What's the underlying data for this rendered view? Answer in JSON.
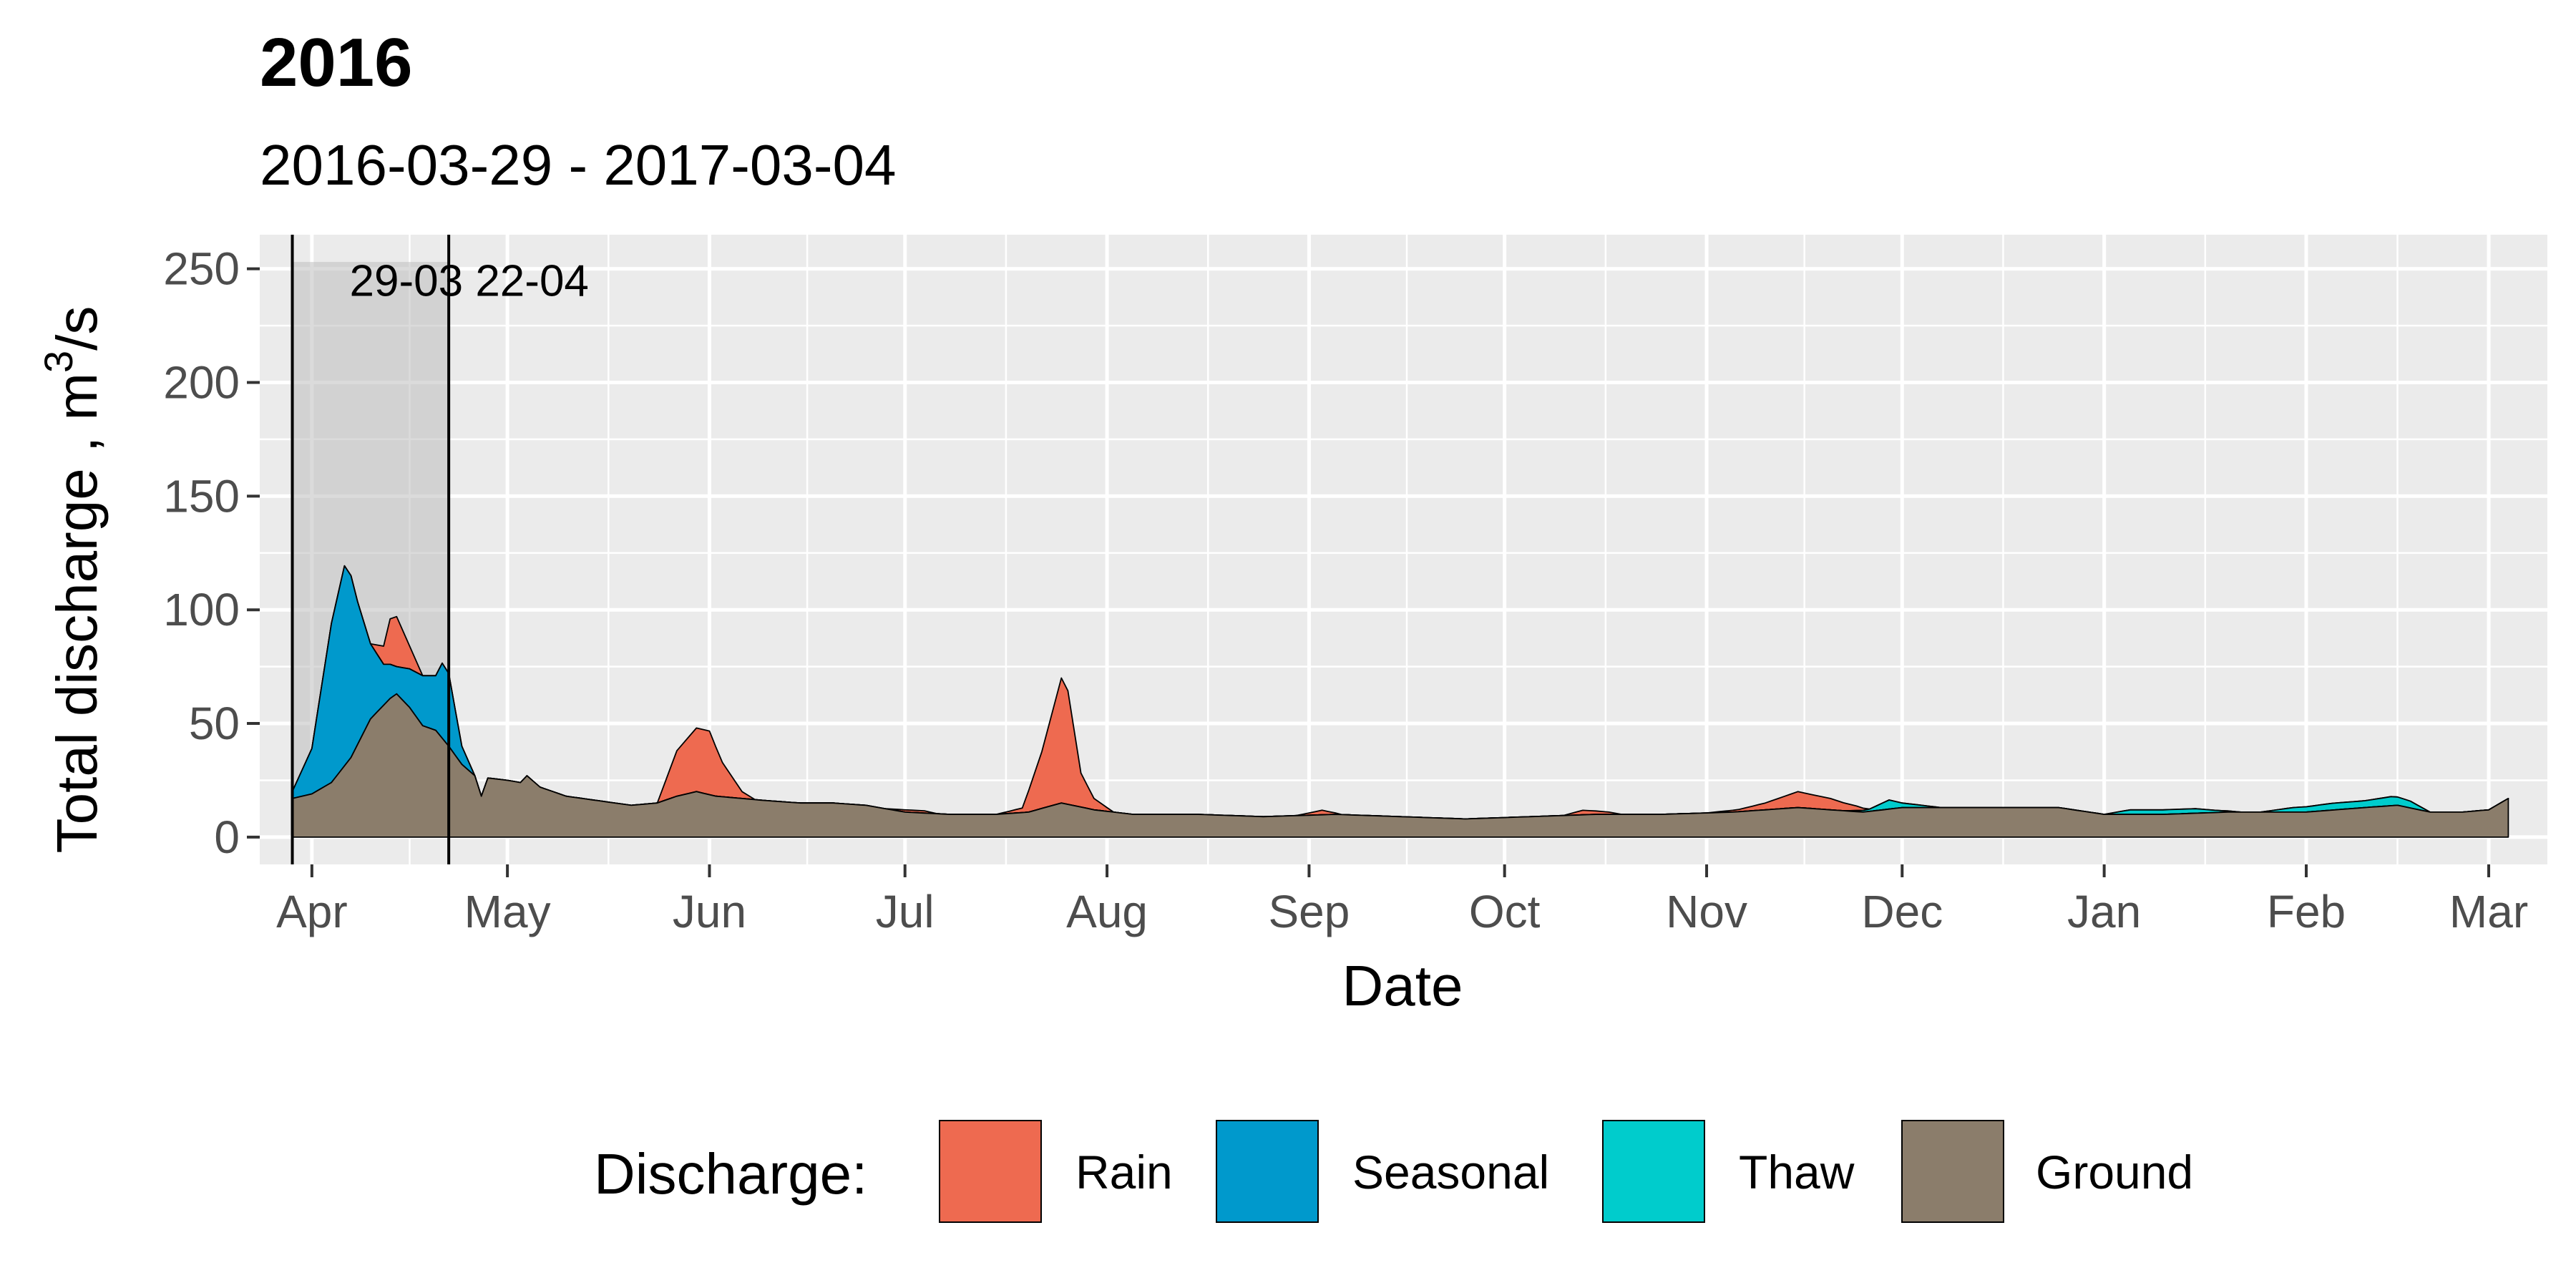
{
  "chart_data": {
    "type": "area",
    "stacked": true,
    "title": "2016",
    "subtitle": "2016-03-29 - 2017-03-04",
    "xlabel": "Date",
    "ylabel_main": "Total discharge ,  m",
    "ylabel_sup": "3",
    "ylabel_tail": "/s",
    "xlim": [
      "2016-03-24",
      "2017-03-10"
    ],
    "ylim": [
      -12,
      265
    ],
    "x_ticks": [
      {
        "date": "2016-04-01",
        "label": "Apr"
      },
      {
        "date": "2016-05-01",
        "label": "May"
      },
      {
        "date": "2016-06-01",
        "label": "Jun"
      },
      {
        "date": "2016-07-01",
        "label": "Jul"
      },
      {
        "date": "2016-08-01",
        "label": "Aug"
      },
      {
        "date": "2016-09-01",
        "label": "Sep"
      },
      {
        "date": "2016-10-01",
        "label": "Oct"
      },
      {
        "date": "2016-11-01",
        "label": "Nov"
      },
      {
        "date": "2016-12-01",
        "label": "Dec"
      },
      {
        "date": "2017-01-01",
        "label": "Jan"
      },
      {
        "date": "2017-02-01",
        "label": "Feb"
      },
      {
        "date": "2017-03-01",
        "label": "Mar"
      }
    ],
    "y_ticks": [
      0,
      50,
      100,
      150,
      200,
      250
    ],
    "grid": true,
    "highlight": {
      "start": "2016-03-29",
      "end": "2016-04-22",
      "ymax": 253,
      "label": "29-03 22-04"
    },
    "legend_title": "Discharge:",
    "legend_position": "bottom",
    "series": [
      {
        "name": "Ground",
        "color": "#8b7d6b",
        "points": [
          [
            "2016-03-29",
            17
          ],
          [
            "2016-04-01",
            19
          ],
          [
            "2016-04-04",
            24
          ],
          [
            "2016-04-07",
            35
          ],
          [
            "2016-04-10",
            52
          ],
          [
            "2016-04-13",
            61
          ],
          [
            "2016-04-14",
            63
          ],
          [
            "2016-04-16",
            57
          ],
          [
            "2016-04-18",
            49
          ],
          [
            "2016-04-20",
            47
          ],
          [
            "2016-04-22",
            40
          ],
          [
            "2016-04-24",
            32
          ],
          [
            "2016-04-26",
            27
          ],
          [
            "2016-04-27",
            18
          ],
          [
            "2016-04-28",
            26
          ],
          [
            "2016-05-01",
            25
          ],
          [
            "2016-05-03",
            24
          ],
          [
            "2016-05-04",
            27
          ],
          [
            "2016-05-06",
            22
          ],
          [
            "2016-05-10",
            18
          ],
          [
            "2016-05-15",
            16
          ],
          [
            "2016-05-20",
            14
          ],
          [
            "2016-05-24",
            15
          ],
          [
            "2016-05-27",
            18
          ],
          [
            "2016-05-30",
            20
          ],
          [
            "2016-06-02",
            18
          ],
          [
            "2016-06-06",
            17
          ],
          [
            "2016-06-10",
            16
          ],
          [
            "2016-06-15",
            15
          ],
          [
            "2016-06-20",
            15
          ],
          [
            "2016-06-25",
            14
          ],
          [
            "2016-07-01",
            11
          ],
          [
            "2016-07-08",
            10
          ],
          [
            "2016-07-15",
            10
          ],
          [
            "2016-07-20",
            11
          ],
          [
            "2016-07-25",
            15
          ],
          [
            "2016-07-30",
            12
          ],
          [
            "2016-08-05",
            10
          ],
          [
            "2016-08-15",
            10
          ],
          [
            "2016-08-25",
            9
          ],
          [
            "2016-09-05",
            10
          ],
          [
            "2016-09-15",
            9
          ],
          [
            "2016-09-25",
            8
          ],
          [
            "2016-10-05",
            9
          ],
          [
            "2016-10-15",
            10
          ],
          [
            "2016-10-25",
            10
          ],
          [
            "2016-11-05",
            11
          ],
          [
            "2016-11-15",
            13
          ],
          [
            "2016-11-20",
            12
          ],
          [
            "2016-11-25",
            11
          ],
          [
            "2016-12-01",
            13
          ],
          [
            "2016-12-10",
            13
          ],
          [
            "2016-12-20",
            13
          ],
          [
            "2016-12-25",
            13
          ],
          [
            "2017-01-01",
            10
          ],
          [
            "2017-01-10",
            10
          ],
          [
            "2017-01-20",
            11
          ],
          [
            "2017-01-25",
            11
          ],
          [
            "2017-02-01",
            11
          ],
          [
            "2017-02-10",
            13
          ],
          [
            "2017-02-15",
            14
          ],
          [
            "2017-02-20",
            11
          ],
          [
            "2017-02-25",
            11
          ],
          [
            "2017-03-01",
            12
          ],
          [
            "2017-03-04",
            17
          ]
        ]
      },
      {
        "name": "Seasonal",
        "color": "#0099cc",
        "points": [
          [
            "2016-03-29",
            3
          ],
          [
            "2016-04-01",
            20
          ],
          [
            "2016-04-04",
            70
          ],
          [
            "2016-04-06",
            88
          ],
          [
            "2016-04-07",
            80
          ],
          [
            "2016-04-08",
            63
          ],
          [
            "2016-04-10",
            33
          ],
          [
            "2016-04-12",
            18
          ],
          [
            "2016-04-14",
            12
          ],
          [
            "2016-04-16",
            17
          ],
          [
            "2016-04-18",
            22
          ],
          [
            "2016-04-20",
            24
          ],
          [
            "2016-04-21",
            33
          ],
          [
            "2016-04-22",
            32
          ],
          [
            "2016-04-24",
            8
          ],
          [
            "2016-04-26",
            0
          ],
          [
            "2016-11-27",
            0
          ],
          [
            "2016-11-30",
            0
          ]
        ]
      },
      {
        "name": "Thaw",
        "color": "#00cccc",
        "points": [
          [
            "2016-03-29",
            0
          ],
          [
            "2016-11-22",
            0
          ],
          [
            "2016-11-26",
            1
          ],
          [
            "2016-11-29",
            4
          ],
          [
            "2016-12-01",
            2
          ],
          [
            "2016-12-04",
            1
          ],
          [
            "2016-12-07",
            0
          ],
          [
            "2017-01-01",
            0
          ],
          [
            "2017-01-05",
            2
          ],
          [
            "2017-01-10",
            2
          ],
          [
            "2017-01-15",
            2
          ],
          [
            "2017-01-18",
            1
          ],
          [
            "2017-01-22",
            0
          ],
          [
            "2017-01-25",
            0
          ],
          [
            "2017-01-30",
            2
          ],
          [
            "2017-02-05",
            3
          ],
          [
            "2017-02-10",
            3
          ],
          [
            "2017-02-14",
            4
          ],
          [
            "2017-02-17",
            3
          ],
          [
            "2017-02-20",
            0
          ],
          [
            "2017-03-04",
            0
          ]
        ]
      },
      {
        "name": "Rain",
        "color": "#ee6a50",
        "points": [
          [
            "2016-03-29",
            0
          ],
          [
            "2016-04-10",
            0
          ],
          [
            "2016-04-12",
            8
          ],
          [
            "2016-04-13",
            20
          ],
          [
            "2016-04-14",
            22
          ],
          [
            "2016-04-16",
            10
          ],
          [
            "2016-04-18",
            0
          ],
          [
            "2016-05-24",
            0
          ],
          [
            "2016-05-27",
            20
          ],
          [
            "2016-05-30",
            28
          ],
          [
            "2016-06-01",
            28
          ],
          [
            "2016-06-03",
            15
          ],
          [
            "2016-06-06",
            3
          ],
          [
            "2016-06-08",
            0
          ],
          [
            "2016-06-28",
            0
          ],
          [
            "2016-07-01",
            1
          ],
          [
            "2016-07-04",
            1
          ],
          [
            "2016-07-06",
            0
          ],
          [
            "2016-07-15",
            0
          ],
          [
            "2016-07-19",
            2
          ],
          [
            "2016-07-22",
            25
          ],
          [
            "2016-07-25",
            55
          ],
          [
            "2016-07-26",
            50
          ],
          [
            "2016-07-28",
            15
          ],
          [
            "2016-07-30",
            5
          ],
          [
            "2016-08-02",
            0
          ],
          [
            "2016-08-15",
            0
          ],
          [
            "2016-08-20",
            0
          ],
          [
            "2016-08-30",
            0
          ],
          [
            "2016-09-03",
            2
          ],
          [
            "2016-09-06",
            0
          ],
          [
            "2016-10-10",
            0
          ],
          [
            "2016-10-13",
            2
          ],
          [
            "2016-10-17",
            1
          ],
          [
            "2016-10-19",
            0
          ],
          [
            "2016-11-01",
            0
          ],
          [
            "2016-11-06",
            1
          ],
          [
            "2016-11-10",
            3
          ],
          [
            "2016-11-15",
            7
          ],
          [
            "2016-11-20",
            5
          ],
          [
            "2016-11-24",
            2
          ],
          [
            "2016-11-26",
            0
          ],
          [
            "2016-12-10",
            0
          ],
          [
            "2017-03-04",
            0
          ]
        ]
      }
    ],
    "legend": [
      {
        "name": "Rain",
        "color": "#ee6a50"
      },
      {
        "name": "Seasonal",
        "color": "#0099cc"
      },
      {
        "name": "Thaw",
        "color": "#00cccc"
      },
      {
        "name": "Ground",
        "color": "#8b7d6b"
      }
    ]
  }
}
